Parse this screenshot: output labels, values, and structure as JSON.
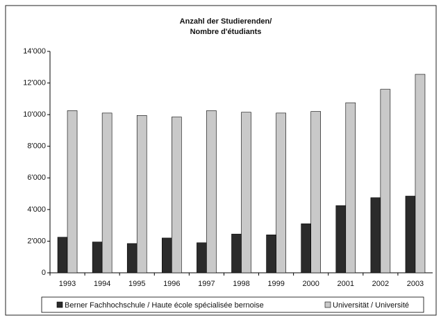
{
  "chart_data": {
    "type": "bar",
    "title_lines": [
      "Anzahl der Studierenden/",
      "Nombre d'étudiants"
    ],
    "categories": [
      "1993",
      "1994",
      "1995",
      "1996",
      "1997",
      "1998",
      "1999",
      "2000",
      "2001",
      "2002",
      "2003"
    ],
    "series": [
      {
        "name": "Berner Fachhochschule / Haute école spécialisée bernoise",
        "color": "#2b2b2b",
        "values": [
          2250,
          1950,
          1850,
          2200,
          1900,
          2450,
          2400,
          3100,
          4250,
          4750,
          4850
        ]
      },
      {
        "name": "Universität / Université",
        "color": "#c9c9c9",
        "values": [
          10250,
          10100,
          9950,
          9850,
          10250,
          10150,
          10100,
          10200,
          10750,
          11600,
          12550
        ]
      }
    ],
    "ylim": [
      0,
      14000
    ],
    "yticks": [
      0,
      {
        "value": 2000,
        "label": "2'000"
      },
      {
        "value": 4000,
        "label": "4'000"
      },
      {
        "value": 6000,
        "label": "6'000"
      },
      {
        "value": 8000,
        "label": "8'000"
      },
      {
        "value": 10000,
        "label": "10'000"
      },
      {
        "value": 12000,
        "label": "12'000"
      },
      {
        "value": 14000,
        "label": "14'000"
      }
    ],
    "grid": false,
    "legend": "bottom"
  }
}
